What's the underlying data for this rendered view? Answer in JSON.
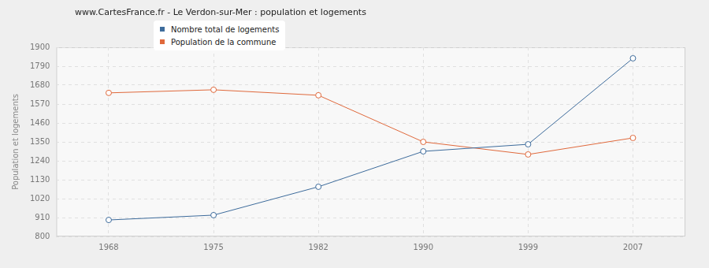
{
  "chart_data": {
    "type": "line",
    "title": "www.CartesFrance.fr - Le Verdon-sur-Mer : population et logements",
    "y_label": "Population et logements",
    "categories": [
      "1968",
      "1975",
      "1982",
      "1990",
      "1999",
      "2007"
    ],
    "series": [
      {
        "name": "Nombre total de logements",
        "color": "#3e6c9c",
        "values": [
          896,
          924,
          1089,
          1295,
          1336,
          1836
        ]
      },
      {
        "name": "Population de la commune",
        "color": "#e0693c",
        "values": [
          1635,
          1653,
          1621,
          1350,
          1277,
          1373
        ]
      }
    ],
    "ylim": [
      800,
      1900
    ],
    "yticks": [
      800,
      910,
      1020,
      1130,
      1240,
      1350,
      1460,
      1570,
      1680,
      1790,
      1900
    ],
    "grid": true,
    "legend": "top-left",
    "marker": "circle"
  }
}
